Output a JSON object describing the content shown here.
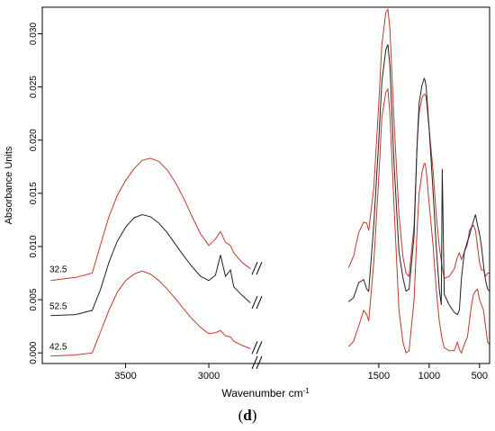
{
  "chart_data": {
    "type": "line",
    "title": "",
    "xlabel": "Wavenumber cm",
    "xlabel_superscript": "-1",
    "ylabel": "Absorbance Units",
    "x_reversed": true,
    "xlim": [
      4000,
      400
    ],
    "ylim": [
      -0.001,
      0.0325
    ],
    "x_break": [
      2730,
      2670
    ],
    "xticks": [
      3500,
      3000,
      1500,
      1000,
      500
    ],
    "yticks": [
      0.0,
      0.005,
      0.01,
      0.015,
      0.02,
      0.025,
      0.03
    ],
    "ytick_labels": [
      "0.000",
      "0.005",
      "0.010",
      "0.015",
      "0.020",
      "0.025",
      "0.030"
    ],
    "grid": false,
    "legend": "none",
    "series": [
      {
        "name": "32.5",
        "color": "#c0392b",
        "x": [
          3950,
          3800,
          3700,
          3650,
          3600,
          3550,
          3500,
          3450,
          3400,
          3350,
          3300,
          3250,
          3200,
          3150,
          3100,
          3050,
          3000,
          2960,
          2930,
          2900,
          2870,
          2850,
          2800,
          2750,
          1800,
          1750,
          1700,
          1650,
          1620,
          1600,
          1550,
          1500,
          1470,
          1430,
          1410,
          1390,
          1350,
          1300,
          1260,
          1230,
          1200,
          1150,
          1120,
          1100,
          1070,
          1050,
          1040,
          1030,
          1000,
          960,
          930,
          900,
          870,
          850,
          800,
          750,
          720,
          700,
          680,
          650,
          620,
          600,
          580,
          560,
          540,
          520,
          500,
          480,
          460,
          440,
          420,
          400
        ],
        "y": [
          0.0068,
          0.0071,
          0.0075,
          0.0102,
          0.0128,
          0.0148,
          0.0162,
          0.0173,
          0.0181,
          0.0183,
          0.018,
          0.0172,
          0.016,
          0.0145,
          0.0128,
          0.0112,
          0.0101,
          0.0107,
          0.0114,
          0.0104,
          0.0101,
          0.0094,
          0.0085,
          0.0079,
          0.008,
          0.0091,
          0.0113,
          0.0123,
          0.0122,
          0.0115,
          0.0155,
          0.0235,
          0.029,
          0.032,
          0.0323,
          0.0305,
          0.022,
          0.013,
          0.009,
          0.0075,
          0.0072,
          0.012,
          0.0195,
          0.0226,
          0.024,
          0.0243,
          0.0243,
          0.024,
          0.021,
          0.017,
          0.013,
          0.01,
          0.008,
          0.007,
          0.0072,
          0.0079,
          0.009,
          0.0094,
          0.0088,
          0.0095,
          0.0102,
          0.0115,
          0.0118,
          0.012,
          0.0115,
          0.01,
          0.0085,
          0.0078,
          0.0078,
          0.0072,
          0.0075,
          0.0075
        ]
      },
      {
        "name": "52.5",
        "color": "#222222",
        "x": [
          3950,
          3800,
          3700,
          3650,
          3600,
          3550,
          3500,
          3450,
          3400,
          3350,
          3300,
          3250,
          3200,
          3150,
          3100,
          3050,
          3000,
          2960,
          2930,
          2900,
          2870,
          2850,
          2800,
          2750,
          1800,
          1750,
          1700,
          1650,
          1620,
          1600,
          1550,
          1500,
          1470,
          1430,
          1410,
          1390,
          1350,
          1300,
          1260,
          1230,
          1200,
          1150,
          1120,
          1100,
          1070,
          1050,
          1040,
          1030,
          1000,
          960,
          930,
          900,
          880,
          870,
          850,
          800,
          750,
          720,
          700,
          680,
          650,
          620,
          600,
          580,
          560,
          540,
          520,
          500,
          480,
          460,
          440,
          420,
          400
        ],
        "y": [
          0.0035,
          0.0036,
          0.004,
          0.006,
          0.0085,
          0.0105,
          0.0118,
          0.0127,
          0.013,
          0.0128,
          0.0122,
          0.0113,
          0.0102,
          0.0091,
          0.0081,
          0.0072,
          0.0068,
          0.0073,
          0.0092,
          0.0072,
          0.0078,
          0.0062,
          0.0054,
          0.0047,
          0.0048,
          0.0052,
          0.0066,
          0.0069,
          0.006,
          0.0058,
          0.012,
          0.02,
          0.0255,
          0.0285,
          0.029,
          0.027,
          0.018,
          0.0095,
          0.007,
          0.0058,
          0.006,
          0.011,
          0.0195,
          0.0235,
          0.0252,
          0.0258,
          0.0256,
          0.025,
          0.021,
          0.015,
          0.01,
          0.006,
          0.0045,
          0.0173,
          0.0055,
          0.0045,
          0.0038,
          0.0036,
          0.004,
          0.007,
          0.0095,
          0.0105,
          0.011,
          0.0118,
          0.0124,
          0.013,
          0.012,
          0.0112,
          0.01,
          0.0082,
          0.0068,
          0.006,
          0.0058
        ]
      },
      {
        "name": "42.5",
        "color": "#c0392b",
        "x": [
          3950,
          3800,
          3700,
          3650,
          3600,
          3550,
          3500,
          3450,
          3400,
          3350,
          3300,
          3250,
          3200,
          3150,
          3100,
          3050,
          3000,
          2960,
          2930,
          2900,
          2870,
          2850,
          2800,
          2750,
          1800,
          1750,
          1700,
          1650,
          1620,
          1600,
          1550,
          1500,
          1470,
          1430,
          1410,
          1390,
          1350,
          1300,
          1260,
          1230,
          1200,
          1150,
          1120,
          1100,
          1070,
          1050,
          1040,
          1030,
          1000,
          960,
          930,
          900,
          870,
          850,
          800,
          750,
          720,
          700,
          680,
          650,
          620,
          600,
          580,
          560,
          540,
          520,
          500,
          480,
          460,
          440,
          420,
          400
        ],
        "y": [
          -0.0003,
          -0.0002,
          0.0,
          0.002,
          0.004,
          0.0057,
          0.0068,
          0.0074,
          0.0077,
          0.0074,
          0.0068,
          0.006,
          0.0051,
          0.0041,
          0.0032,
          0.0024,
          0.0018,
          0.0019,
          0.0021,
          0.0016,
          0.0015,
          0.0011,
          0.0007,
          0.0004,
          0.0006,
          0.0011,
          0.0025,
          0.004,
          0.0036,
          0.003,
          0.0085,
          0.0165,
          0.0222,
          0.0245,
          0.0248,
          0.0225,
          0.014,
          0.004,
          0.001,
          0.0,
          0.0002,
          0.005,
          0.0115,
          0.015,
          0.017,
          0.0178,
          0.0178,
          0.0172,
          0.014,
          0.01,
          0.006,
          0.003,
          0.0012,
          0.0005,
          0.0002,
          0.0002,
          0.001,
          0.0003,
          0.0,
          0.0008,
          0.0015,
          0.003,
          0.0045,
          0.0055,
          0.0058,
          0.006,
          0.005,
          0.0045,
          0.004,
          0.0025,
          0.001,
          0.0008
        ]
      }
    ],
    "annotations": [
      "32.5",
      "52.5",
      "42.5"
    ]
  },
  "figure_label": "d"
}
